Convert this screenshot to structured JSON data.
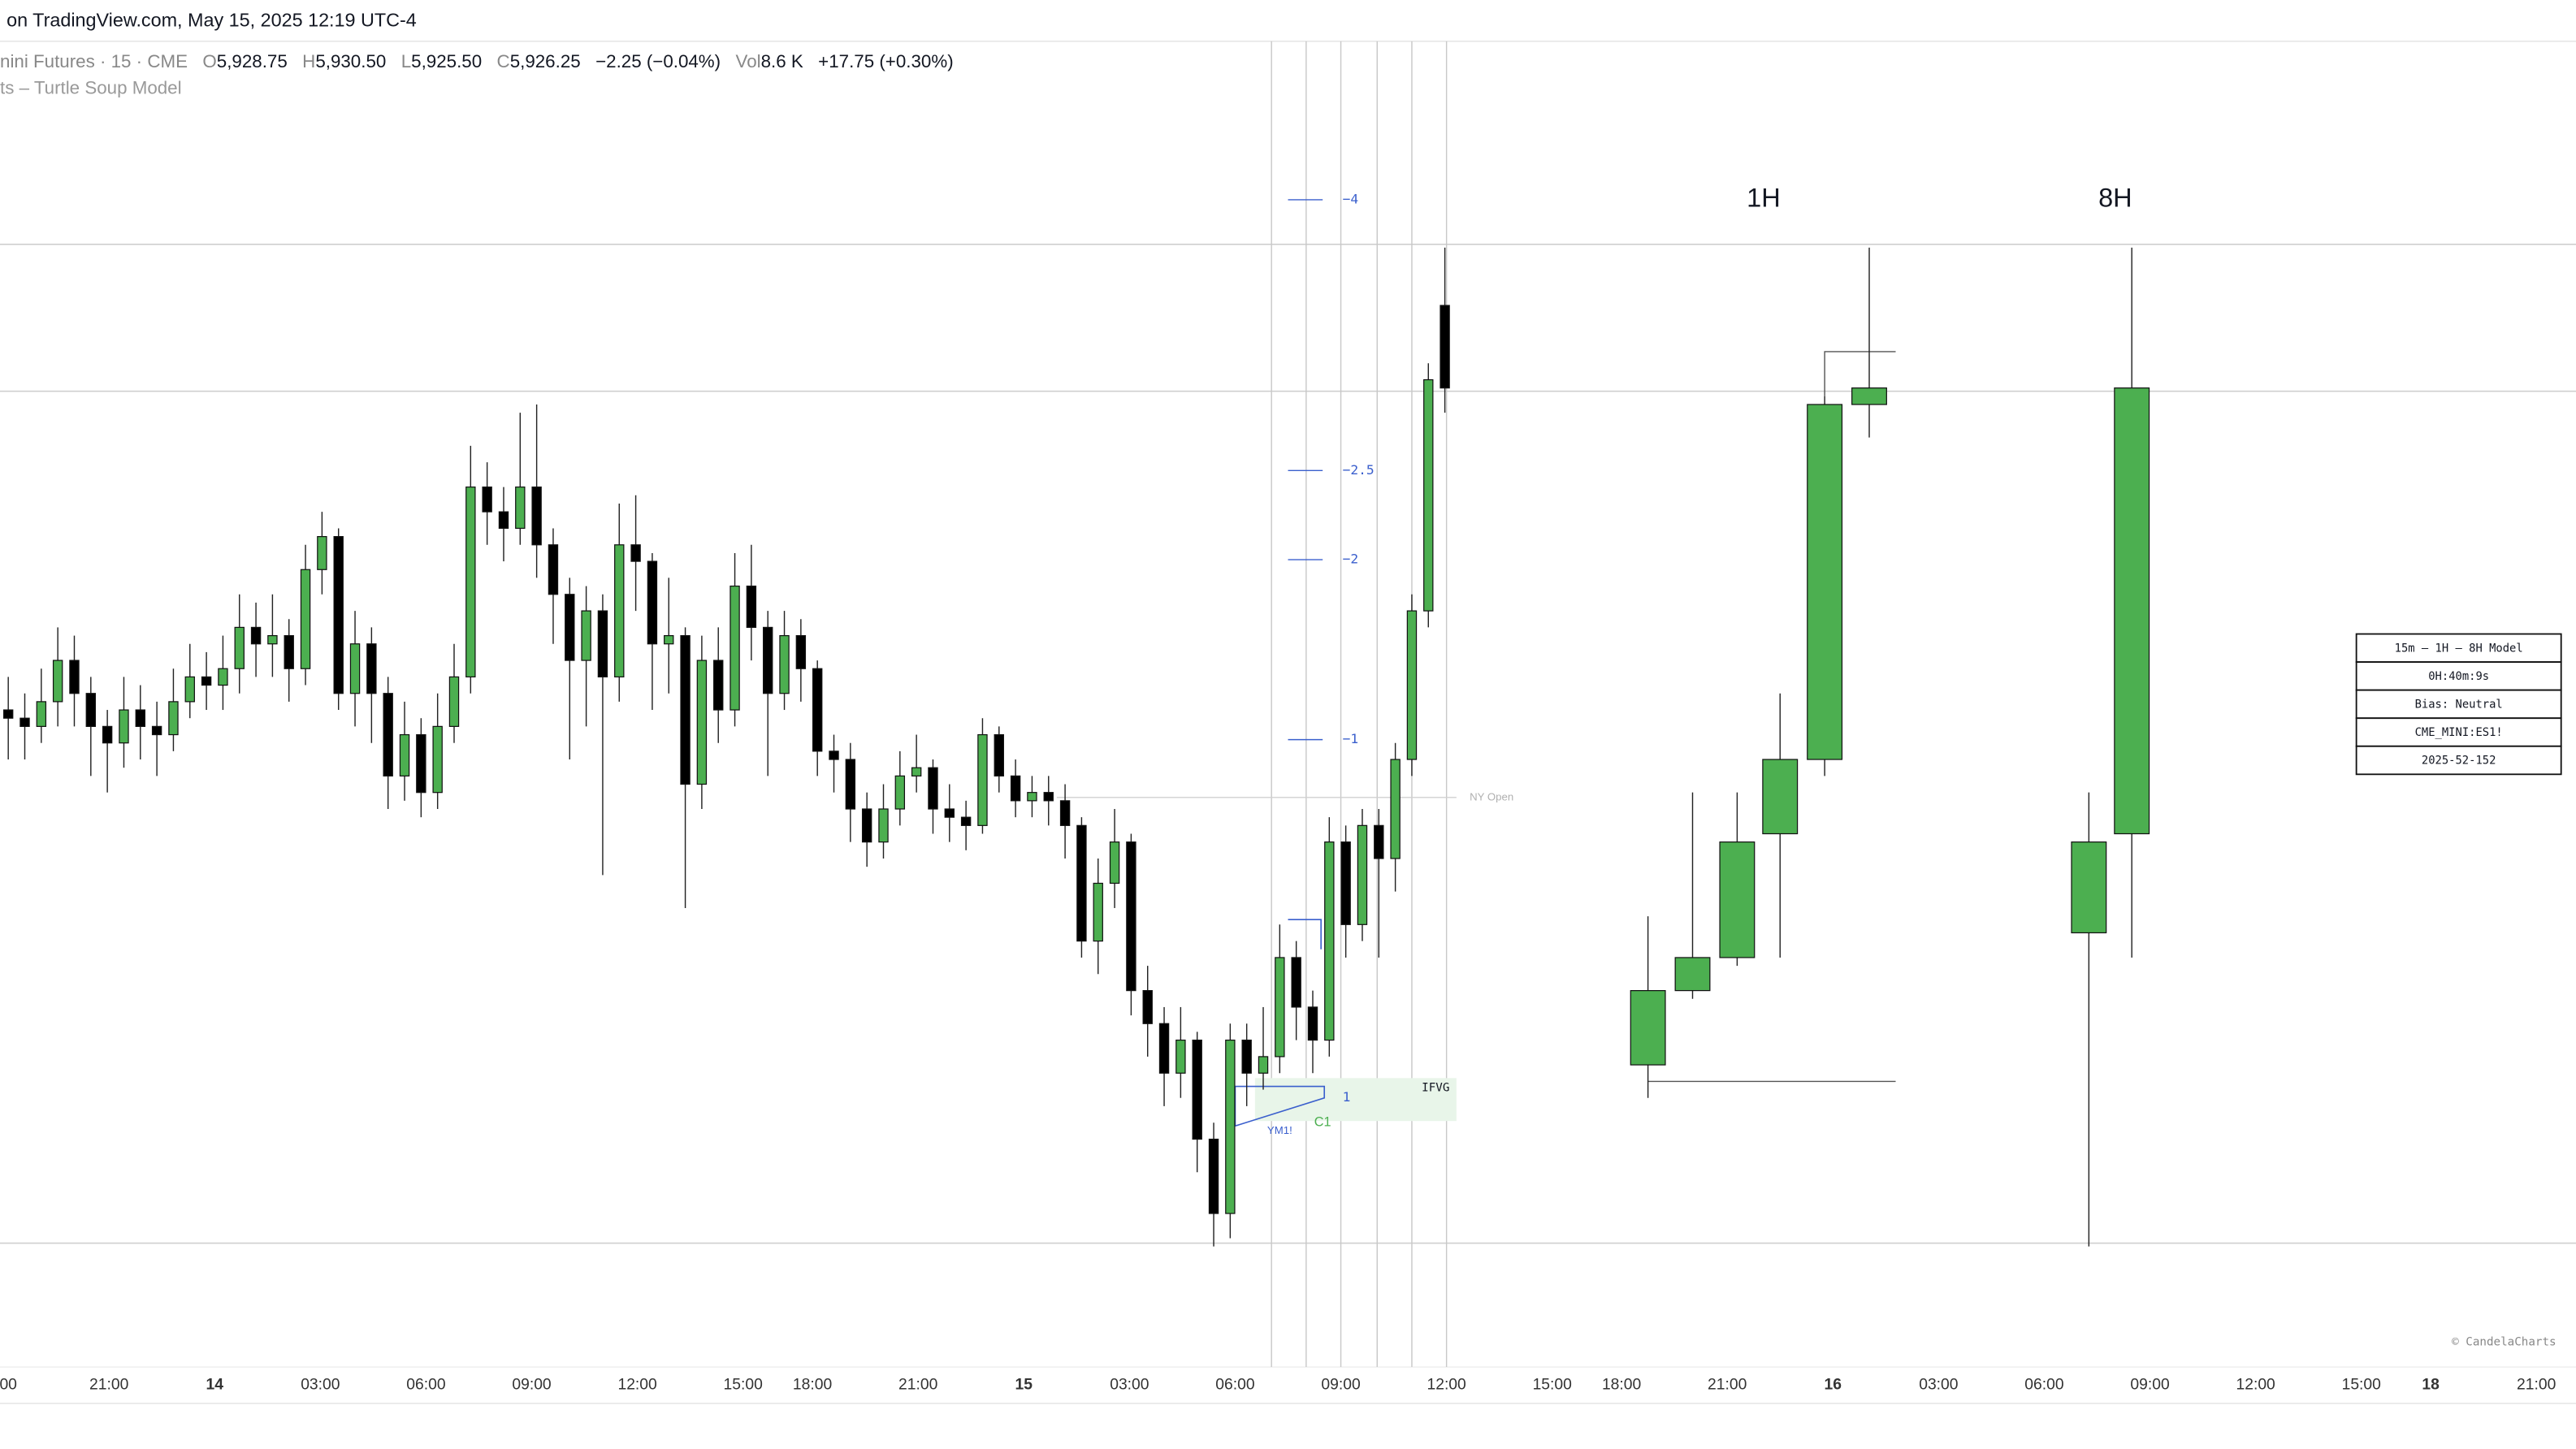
{
  "header": {
    "source": "on TradingView.com, May 15, 2025 12:19 UTC-4",
    "symbol": "nini Futures · 15 · CME",
    "ohlc": [
      {
        "key": "O",
        "value": "5,928.75"
      },
      {
        "key": "H",
        "value": "5,930.50"
      },
      {
        "key": "L",
        "value": "5,925.50"
      },
      {
        "key": "C",
        "value": "5,926.25"
      }
    ],
    "change": "−2.25 (−0.04%)",
    "vol_key": "Vol",
    "vol": "8.6 K",
    "vol_change": "+17.75 (+0.30%)",
    "indicator": "ts – Turtle Soup Model"
  },
  "chart_data": {
    "type": "candlestick",
    "ylim": [
      5896.5,
      5936.75
    ],
    "up_color": "#4caf50",
    "down_color": "#000000",
    "open": [
      5916.5,
      5916.25,
      5916,
      5916.75,
      5918,
      5917,
      5916,
      5915.5,
      5916.5,
      5916,
      5915.75,
      5916.75,
      5917.5,
      5917.25,
      5917.75,
      5919,
      5918.5,
      5918.75,
      5917.75,
      5920.75,
      5921.75,
      5917,
      5918.5,
      5917,
      5914.5,
      5915.75,
      5914,
      5916,
      5917.5,
      5923.25,
      5922.5,
      5922,
      5923.25,
      5921.5,
      5920,
      5918,
      5919.5,
      5917.5,
      5921.5,
      5921,
      5918.5,
      5918.75,
      5914.25,
      5918,
      5916.5,
      5920.25,
      5919,
      5917,
      5918.75,
      5917.75,
      5915.25,
      5915,
      5913.5,
      5912.5,
      5913.5,
      5914.5,
      5914.75,
      5913.5,
      5913.25,
      5913,
      5915.75,
      5914.5,
      5913.75,
      5914,
      5913.75,
      5913,
      5909.5,
      5911.25,
      5912.5,
      5908,
      5907,
      5905.5,
      5906.5,
      5903.5,
      5901.25,
      5906.5,
      5905.5,
      5906,
      5909,
      5907.5,
      5906.5,
      5912.5,
      5910,
      5913,
      5912,
      5915,
      5919.5,
      5928.75
    ],
    "high": [
      5917.5,
      5917,
      5917.75,
      5919,
      5918.75,
      5917.5,
      5916.5,
      5917.5,
      5917.25,
      5916.75,
      5917.75,
      5918.5,
      5918.25,
      5918.75,
      5920,
      5919.75,
      5920,
      5919.25,
      5921.5,
      5922.5,
      5922,
      5919.5,
      5919,
      5917.5,
      5916.75,
      5916.25,
      5917,
      5918.5,
      5924.5,
      5924,
      5923.25,
      5925.5,
      5925.75,
      5922,
      5920.5,
      5920.25,
      5920,
      5922.75,
      5923,
      5921.25,
      5920.5,
      5919,
      5918.75,
      5919,
      5921.25,
      5921.5,
      5919.5,
      5919.5,
      5919.25,
      5918,
      5915.75,
      5915.5,
      5914,
      5914.25,
      5915.25,
      5915.75,
      5915,
      5914.25,
      5913.75,
      5916.25,
      5916,
      5915,
      5914.5,
      5914.5,
      5914.25,
      5913.25,
      5912,
      5913.5,
      5912.75,
      5908.75,
      5907.5,
      5907.5,
      5906.75,
      5904,
      5907,
      5907,
      5907.5,
      5910,
      5909.5,
      5908,
      5913.25,
      5913,
      5913.5,
      5913.5,
      5915.5,
      5920,
      5927,
      5930.5
    ],
    "low": [
      5915,
      5915,
      5915.5,
      5916,
      5916,
      5914.5,
      5914,
      5914.75,
      5915,
      5914.5,
      5915.25,
      5916.25,
      5916.5,
      5916.5,
      5917,
      5917.5,
      5917.5,
      5916.75,
      5917.25,
      5920,
      5916.5,
      5916,
      5915.5,
      5913.5,
      5913.75,
      5913.25,
      5913.5,
      5915.5,
      5917,
      5921.5,
      5921,
      5921.5,
      5920.5,
      5918.5,
      5915,
      5916,
      5911.5,
      5916.75,
      5919.5,
      5916.5,
      5917,
      5910.5,
      5913.5,
      5915.5,
      5916,
      5918,
      5914.5,
      5916.5,
      5916.75,
      5914.5,
      5914,
      5912.5,
      5911.75,
      5912,
      5913,
      5914,
      5912.75,
      5912.5,
      5912.25,
      5912.75,
      5914,
      5913.25,
      5913.25,
      5913,
      5912,
      5909,
      5908.5,
      5910.5,
      5907.25,
      5906,
      5904.5,
      5904.75,
      5902.5,
      5900.25,
      5900.5,
      5904.5,
      5905,
      5905.5,
      5906.5,
      5905.5,
      5906,
      5909,
      5909.5,
      5909,
      5911,
      5914.5,
      5919,
      5925.5
    ],
    "close": [
      5916.25,
      5916,
      5916.75,
      5918,
      5917,
      5916,
      5915.5,
      5916.5,
      5916,
      5915.75,
      5916.75,
      5917.5,
      5917.25,
      5917.75,
      5919,
      5918.5,
      5918.75,
      5917.75,
      5920.75,
      5921.75,
      5917,
      5918.5,
      5917,
      5914.5,
      5915.75,
      5914,
      5916,
      5917.5,
      5923.25,
      5922.5,
      5922,
      5923.25,
      5921.5,
      5920,
      5918,
      5919.5,
      5917.5,
      5921.5,
      5921,
      5918.5,
      5918.75,
      5914.25,
      5918,
      5916.5,
      5920.25,
      5919,
      5917,
      5918.75,
      5917.75,
      5915.25,
      5915,
      5913.5,
      5912.5,
      5913.5,
      5914.5,
      5914.75,
      5913.5,
      5913.25,
      5913,
      5915.75,
      5914.5,
      5913.75,
      5914,
      5913.75,
      5913,
      5909.5,
      5911.25,
      5912.5,
      5908,
      5907,
      5905.5,
      5906.5,
      5903.5,
      5901.25,
      5906.5,
      5905.5,
      5906,
      5909,
      5907.5,
      5906.5,
      5912.5,
      5910,
      5913,
      5912,
      5915,
      5919.5,
      5926.5,
      5926.25
    ],
    "htf": [
      {
        "label": "1H",
        "open": [
          5905.75,
          5908,
          5909,
          5912.75,
          5915,
          5925.75
        ],
        "high": [
          5910.25,
          5914,
          5914,
          5917,
          5926,
          5930.5
        ],
        "low": [
          5904.75,
          5907.75,
          5908.75,
          5909,
          5914.5,
          5924.75
        ],
        "close": [
          5908,
          5909,
          5912.5,
          5915,
          5925.75,
          5926.25
        ]
      },
      {
        "label": "8H",
        "open": [
          5909.75,
          5912.75
        ],
        "high": [
          5914,
          5930.5
        ],
        "low": [
          5900.25,
          5909
        ],
        "close": [
          5912.5,
          5926.25
        ]
      }
    ],
    "fib_labels": [
      "−4",
      "−2.5",
      "−2",
      "−1",
      "1"
    ],
    "ny_open": "NY Open",
    "ifvg": "IFVG",
    "c1": "C1",
    "smt": "YM1!",
    "time_labels": [
      "00",
      "21:00",
      "14",
      "03:00",
      "06:00",
      "09:00",
      "12:00",
      "15:00",
      "18:00",
      "21:00",
      "15",
      "03:00",
      "06:00",
      "09:00",
      "12:00",
      "15:00",
      "18:00",
      "21:00",
      "16",
      "03:00",
      "06:00",
      "09:00",
      "12:00",
      "15:00",
      "18",
      "21:00"
    ],
    "watermark": "© CandelaCharts"
  },
  "table": {
    "rows": [
      "15m – 1H – 8H Model",
      "0H:40m:9s",
      "Bias: Neutral",
      "CME_MINI:ES1!",
      "2025-52-152"
    ]
  }
}
